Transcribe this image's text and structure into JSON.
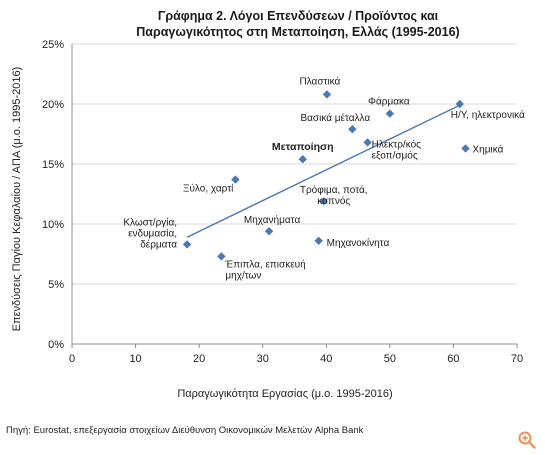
{
  "colors": {
    "marker": "#4a78b7",
    "trend": "#4a78b7",
    "grid": "#d9d9d9",
    "axis": "#8c8c8c",
    "zoom": "#e8955a"
  },
  "source_text": "Πηγή: Eurostat, επεξεργασία στοιχείων Διεύθυνση Οικονομικών Μελετών Alpha Bank",
  "zoom_icon": "zoom-in-icon",
  "chart_data": {
    "type": "scatter",
    "title": [
      "Γράφημα 2. Λόγοι Επενδύσεων / Προϊόντος και",
      "Παραγωγικότητος στη Μεταποίηση, Ελλάς (1995-2016)"
    ],
    "xlabel": "Παραγωγικότητα Εργασίας (μ.ο. 1995-2016)",
    "ylabel": "Επενδύσεις Παγίου Κεφαλαίου / ΑΠΑ (μ.ο. 1995-2016)",
    "xlim": [
      0,
      70
    ],
    "ylim": [
      0,
      25
    ],
    "xticks": [
      "0",
      "10",
      "20",
      "30",
      "40",
      "50",
      "60",
      "70"
    ],
    "yticks": [
      "0%",
      "5%",
      "10%",
      "15%",
      "20%",
      "25%"
    ],
    "grid": "horizontal",
    "legend": "none",
    "points": [
      {
        "x": 18.1,
        "y": 8.3,
        "label": [
          "Κλωστ/ργία,",
          "ενδυμασία,",
          "δέρματα"
        ]
      },
      {
        "x": 23.5,
        "y": 7.3,
        "label": [
          "Έπιπλα, επισκευή",
          "μηχ/των"
        ]
      },
      {
        "x": 25.7,
        "y": 13.7,
        "label": [
          "Ξύλο, χαρτί"
        ]
      },
      {
        "x": 31.0,
        "y": 9.4,
        "label": [
          "Μηχανήματα"
        ]
      },
      {
        "x": 36.3,
        "y": 15.4,
        "label": [
          "Μεταποίηση"
        ],
        "bold": true
      },
      {
        "x": 38.8,
        "y": 8.6,
        "label": [
          "Μηχανοκίνητα"
        ]
      },
      {
        "x": 39.6,
        "y": 11.9,
        "label": [
          "Τρόφιμα, ποτά,",
          "καπνός"
        ]
      },
      {
        "x": 40.1,
        "y": 20.8,
        "label": [
          "Πλαστικά"
        ]
      },
      {
        "x": 44.1,
        "y": 17.9,
        "label": [
          "Βασικά μέταλλα"
        ]
      },
      {
        "x": 46.5,
        "y": 16.8,
        "label": [
          "Ηλεκτρ/κός",
          "εξοπ/σμός"
        ]
      },
      {
        "x": 50.0,
        "y": 19.2,
        "label": [
          "Φάρμακα"
        ]
      },
      {
        "x": 61.0,
        "y": 20.0,
        "label": [
          "Η/Υ, ηλεκτρονικά"
        ]
      },
      {
        "x": 61.9,
        "y": 16.3,
        "label": [
          "Χημικά"
        ]
      }
    ],
    "trendline": {
      "x": [
        18.1,
        61.0
      ],
      "y": [
        8.9,
        19.9
      ]
    }
  }
}
